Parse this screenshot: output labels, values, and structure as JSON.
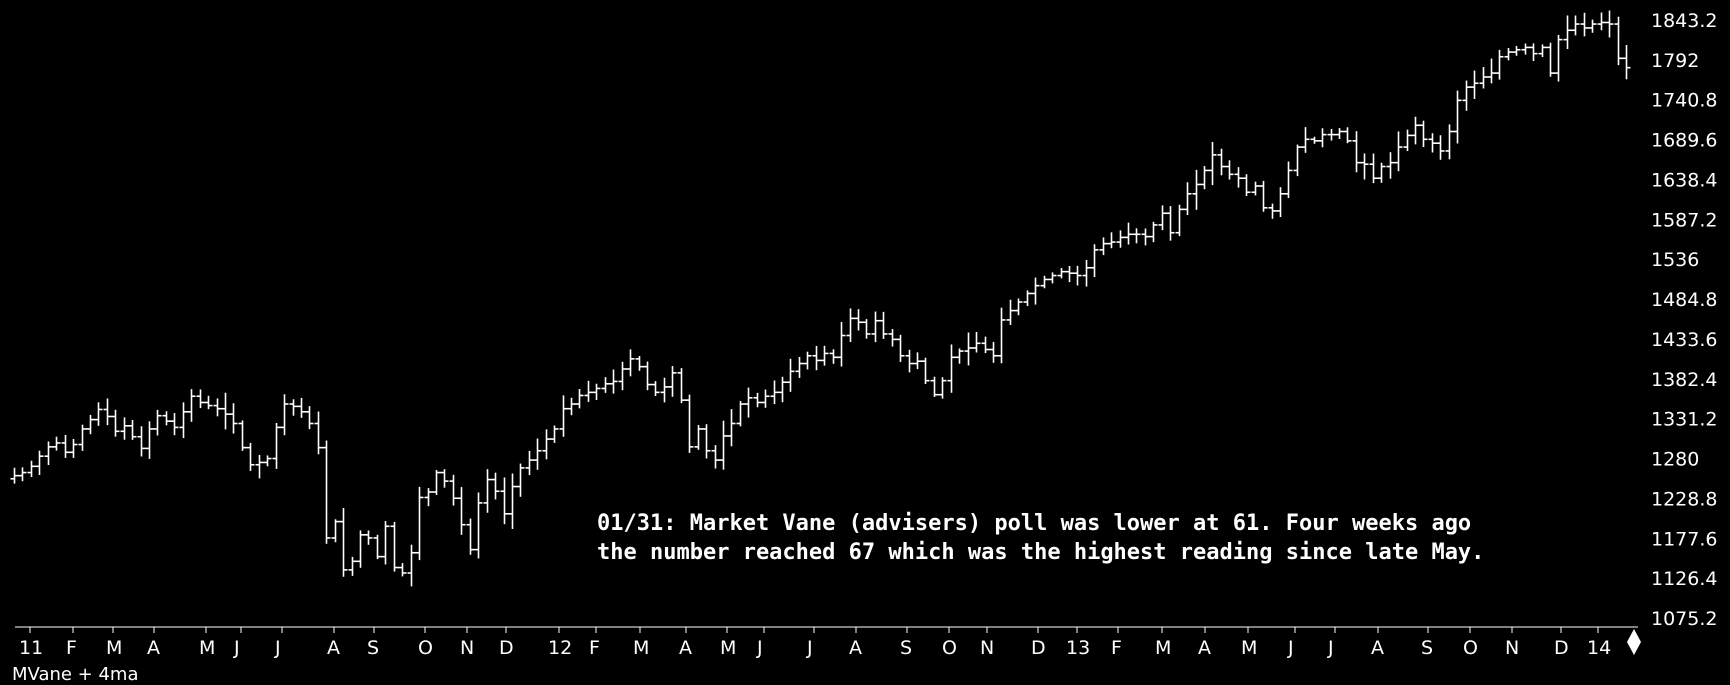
{
  "chart_data": {
    "type": "ohlc",
    "colors": {
      "background": "#000000",
      "bars": "#ffffff",
      "axis": "#ffffff",
      "text": "#ffffff"
    },
    "y_scale": "linear",
    "ylim": [
      1075.2,
      1843.2
    ],
    "y_ticks": [
      "1843.2",
      "1792",
      "1740.8",
      "1689.6",
      "1638.4",
      "1587.2",
      "1536",
      "1484.8",
      "1433.6",
      "1382.4",
      "1331.2",
      "1280",
      "1228.8",
      "1177.6",
      "1126.4",
      "1075.2"
    ],
    "x_ticks": [
      "11",
      "F",
      "M",
      "A",
      "M",
      "J",
      "J",
      "A",
      "S",
      "O",
      "N",
      "D",
      "12",
      "F",
      "M",
      "A",
      "M",
      "J",
      "J",
      "A",
      "S",
      "O",
      "N",
      "D",
      "13",
      "F",
      "M",
      "A",
      "M",
      "J",
      "J",
      "A",
      "S",
      "O",
      "N",
      "D",
      "14"
    ],
    "annotation": {
      "line1": "01/31: Market Vane (advisers) poll was lower at 61.  Four weeks ago",
      "line2": "the number reached 67 which was the highest reading since late May."
    },
    "footer_label": "MVane + 4ma",
    "close_series_weekly": [
      1258,
      1262,
      1270,
      1283,
      1295,
      1300,
      1288,
      1298,
      1318,
      1330,
      1343,
      1334,
      1315,
      1322,
      1308,
      1293,
      1318,
      1335,
      1328,
      1320,
      1340,
      1360,
      1352,
      1348,
      1344,
      1337,
      1325,
      1294,
      1272,
      1275,
      1280,
      1320,
      1350,
      1347,
      1340,
      1325,
      1294,
      1178,
      1199,
      1137,
      1148,
      1182,
      1178,
      1154,
      1193,
      1140,
      1133,
      1159,
      1230,
      1237,
      1262,
      1251,
      1229,
      1195,
      1163,
      1223,
      1253,
      1238,
      1209,
      1244,
      1268,
      1278,
      1290,
      1305,
      1318,
      1344,
      1350,
      1361,
      1365,
      1370,
      1376,
      1379,
      1395,
      1408,
      1398,
      1375,
      1365,
      1372,
      1390,
      1355,
      1295,
      1318,
      1290,
      1278,
      1309,
      1325,
      1350,
      1358,
      1352,
      1360,
      1365,
      1378,
      1392,
      1402,
      1412,
      1406,
      1415,
      1410,
      1438,
      1460,
      1455,
      1440,
      1457,
      1440,
      1433,
      1412,
      1402,
      1405,
      1380,
      1362,
      1380,
      1410,
      1418,
      1422,
      1428,
      1420,
      1412,
      1458,
      1470,
      1481,
      1492,
      1502,
      1510,
      1515,
      1520,
      1518,
      1515,
      1525,
      1548,
      1556,
      1558,
      1564,
      1568,
      1568,
      1565,
      1580,
      1595,
      1570,
      1600,
      1620,
      1632,
      1650,
      1670,
      1655,
      1645,
      1640,
      1622,
      1630,
      1602,
      1598,
      1620,
      1650,
      1680,
      1690,
      1688,
      1696,
      1696,
      1700,
      1688,
      1660,
      1658,
      1640,
      1655,
      1660,
      1680,
      1695,
      1708,
      1690,
      1685,
      1675,
      1700,
      1740,
      1757,
      1762,
      1770,
      1775,
      1796,
      1802,
      1805,
      1808,
      1800,
      1808,
      1775,
      1818,
      1830,
      1838,
      1833,
      1838,
      1840,
      1838,
      1794,
      1782
    ]
  }
}
